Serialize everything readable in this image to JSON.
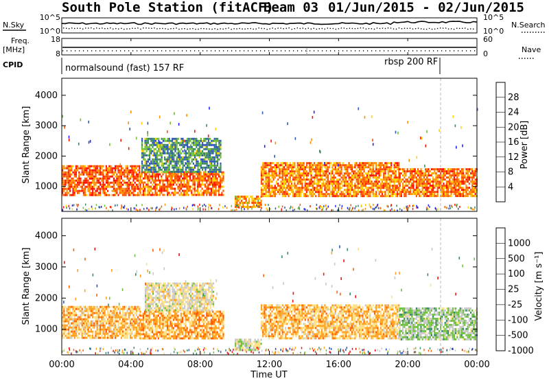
{
  "title_main": "South Pole Station (fitACF)",
  "title_beam": "Beam 03",
  "title_dates": "01/Jun/2015 - 02/Jun/2015",
  "left_labels": {
    "nsky": "N.Sky",
    "nsky_top": "10^5",
    "nsky_bottom": "10^0",
    "freq_line1": "Freq.",
    "freq_line2": "[MHz]",
    "freq_top": "18",
    "freq_bottom": "8",
    "cpid": "CPID"
  },
  "right_labels": {
    "nsearch": "N.Search",
    "nsearch_top": "10^5",
    "nsearch_bottom": "10^0",
    "nave": "Nave",
    "nave_top": "60",
    "nave_bottom": "0"
  },
  "cpid_labels": [
    "normalsound (fast) 157 RF",
    "rbsp 200 RF"
  ],
  "xaxis": {
    "label": "Time UT",
    "ticks": [
      "00:00",
      "04:00",
      "08:00",
      "12:00",
      "16:00",
      "20:00",
      "00:00"
    ]
  },
  "colors": {
    "power": [
      "#1f1fff",
      "#2f55b5",
      "#3d8a60",
      "#6fc030",
      "#ffd200",
      "#ff9000",
      "#ff5000",
      "#ff1000"
    ],
    "velocity": [
      "#ee1010",
      "#ff6000",
      "#ffa020",
      "#ffe080",
      "#c8c8c8",
      "#70c040",
      "#3a8a6a",
      "#2a52b5"
    ]
  },
  "chart_data": [
    {
      "type": "heatmap",
      "panel": "power",
      "ylabel": "Slant Range [km]",
      "xlabel": "",
      "xlim": [
        0,
        24
      ],
      "ylim": [
        180,
        4560
      ],
      "yticks": [
        "1000",
        "2000",
        "3000",
        "4000"
      ],
      "colorbar": {
        "label": "Power [dB]",
        "ticks": [
          "4",
          "8",
          "12",
          "16",
          "20",
          "24",
          "28"
        ],
        "range": [
          0,
          30
        ]
      },
      "regions": [
        {
          "t0": 0.0,
          "t1": 4.5,
          "r0": 700,
          "r1": 1700,
          "level": 0.85
        },
        {
          "t0": 4.5,
          "t1": 9.3,
          "r0": 700,
          "r1": 1500,
          "level": 0.8
        },
        {
          "t0": 4.6,
          "t1": 9.2,
          "r0": 1500,
          "r1": 2600,
          "level": 0.3
        },
        {
          "t0": 11.5,
          "t1": 19.5,
          "r0": 700,
          "r1": 1800,
          "level": 0.75
        },
        {
          "t0": 19.5,
          "t1": 24.0,
          "r0": 700,
          "r1": 1600,
          "level": 0.8
        },
        {
          "t0": 10.0,
          "t1": 11.5,
          "r0": 350,
          "r1": 700,
          "level": 0.7
        }
      ]
    },
    {
      "type": "heatmap",
      "panel": "velocity",
      "ylabel": "Slant Range [km]",
      "xlabel": "Time UT",
      "xlim": [
        0,
        24
      ],
      "ylim": [
        180,
        4560
      ],
      "yticks": [
        "1000",
        "2000",
        "3000",
        "4000"
      ],
      "colorbar": {
        "label": "Velocity [m s⁻¹]",
        "ticks": [
          "1000",
          "500",
          "100",
          "25",
          "-25",
          "-100",
          "-500",
          "-1000"
        ],
        "range": [
          -1000,
          1000
        ]
      },
      "regions": [
        {
          "t0": 0.0,
          "t1": 4.5,
          "r0": 700,
          "r1": 1750,
          "value": -300
        },
        {
          "t0": 4.5,
          "t1": 9.3,
          "r0": 700,
          "r1": 1600,
          "value": -400
        },
        {
          "t0": 4.8,
          "t1": 8.8,
          "r0": 1600,
          "r1": 2500,
          "value": 0
        },
        {
          "t0": 11.5,
          "t1": 19.5,
          "r0": 700,
          "r1": 1800,
          "value": -300
        },
        {
          "t0": 19.5,
          "t1": 24.0,
          "r0": 700,
          "r1": 1700,
          "value": 300
        },
        {
          "t0": 10.0,
          "t1": 11.5,
          "r0": 350,
          "r1": 700,
          "value": 150
        }
      ]
    }
  ]
}
